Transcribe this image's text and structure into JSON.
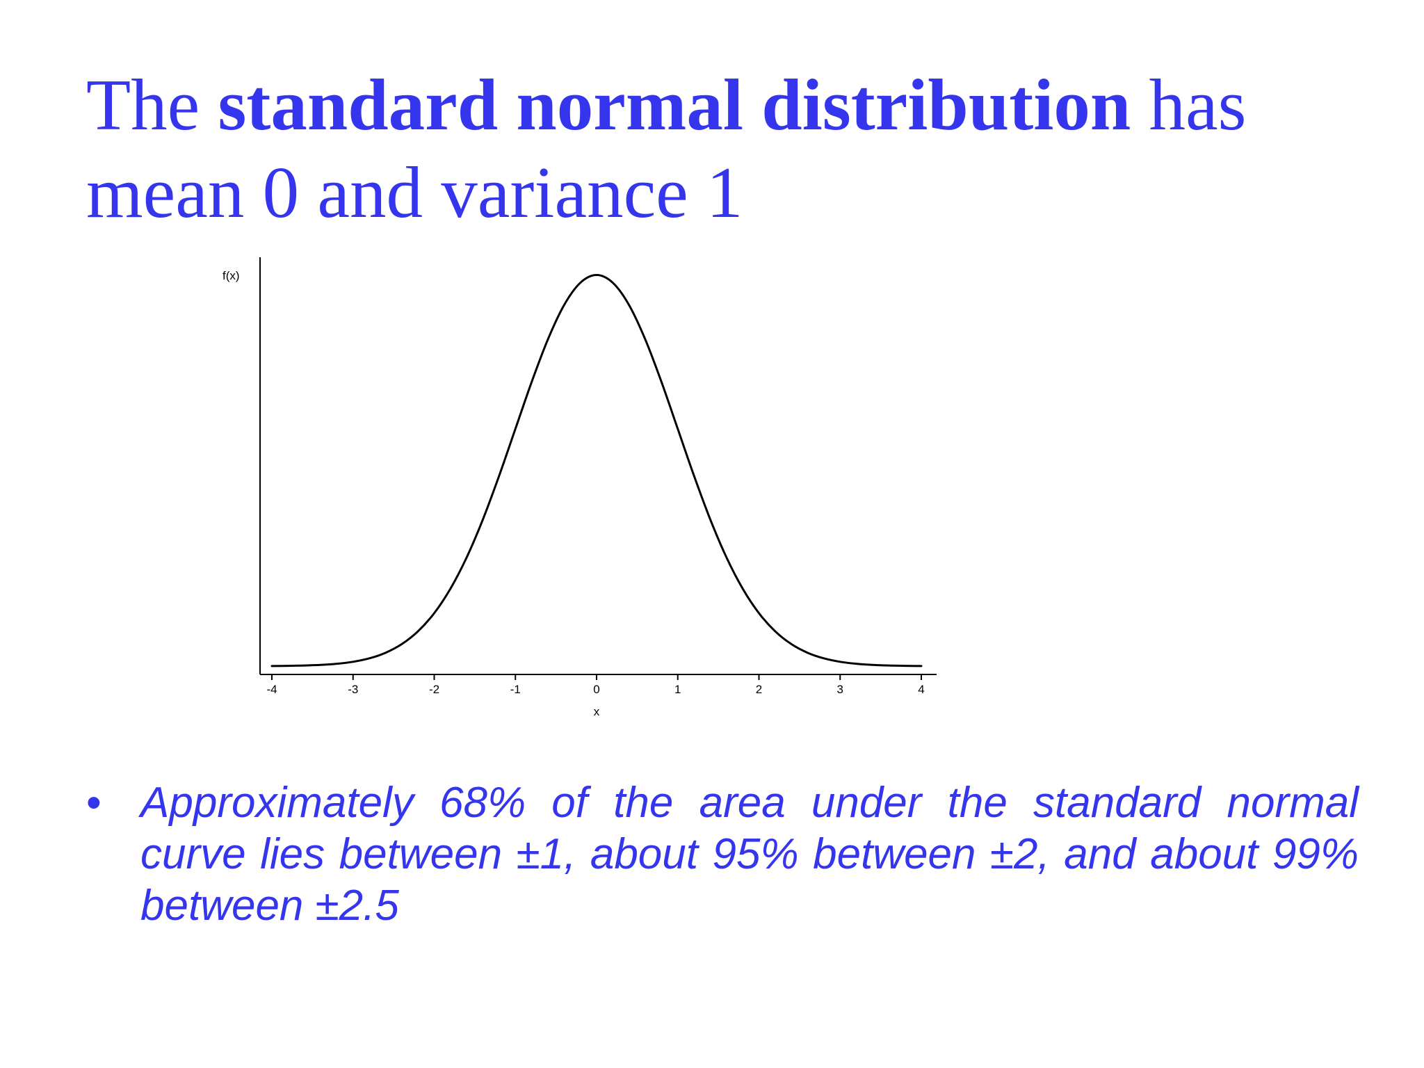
{
  "slide": {
    "title_lead": "The ",
    "title_bold": "standard normal distribution",
    "title_tail": " has mean 0 and variance 1",
    "bullet_symbol": "•",
    "bullet": "Approximately 68% of the area under the standard normal curve lies between ±1, about 95% between ±2, and about 99% between ±2.5",
    "text_color": "#3535ee"
  },
  "chart_data": {
    "type": "line",
    "title": "",
    "xlabel": "x",
    "ylabel": "f(x)",
    "xlim": [
      -4,
      4
    ],
    "ylim": [
      0,
      0.4
    ],
    "xticks": [
      -4,
      -3,
      -2,
      -1,
      0,
      1,
      2,
      3,
      4
    ],
    "xtick_labels": [
      "-4",
      "-3",
      "-2",
      "-1",
      "0",
      "1",
      "2",
      "3",
      "4"
    ],
    "grid": false,
    "legend": "none",
    "line_color": "#000000",
    "series": [
      {
        "x": [
          -4.0,
          -3.8,
          -3.6,
          -3.4,
          -3.2,
          -3.0,
          -2.8,
          -2.6,
          -2.4,
          -2.2,
          -2.0,
          -1.8,
          -1.6,
          -1.4,
          -1.2,
          -1.0,
          -0.8,
          -0.6,
          -0.4,
          -0.2,
          0.0,
          0.2,
          0.4,
          0.6,
          0.8,
          1.0,
          1.2,
          1.4,
          1.6,
          1.8,
          2.0,
          2.2,
          2.4,
          2.6,
          2.8,
          3.0,
          3.2,
          3.4,
          3.6,
          3.8,
          4.0
        ],
        "values": [
          0.0001,
          0.0003,
          0.0006,
          0.0012,
          0.0024,
          0.0044,
          0.0079,
          0.0136,
          0.0224,
          0.0355,
          0.054,
          0.079,
          0.1109,
          0.1497,
          0.1942,
          0.242,
          0.2897,
          0.3332,
          0.3683,
          0.391,
          0.3989,
          0.391,
          0.3683,
          0.3332,
          0.2897,
          0.242,
          0.1942,
          0.1497,
          0.1109,
          0.079,
          0.054,
          0.0355,
          0.0224,
          0.0136,
          0.0079,
          0.0044,
          0.0024,
          0.0012,
          0.0006,
          0.0003,
          0.0001
        ]
      }
    ]
  }
}
